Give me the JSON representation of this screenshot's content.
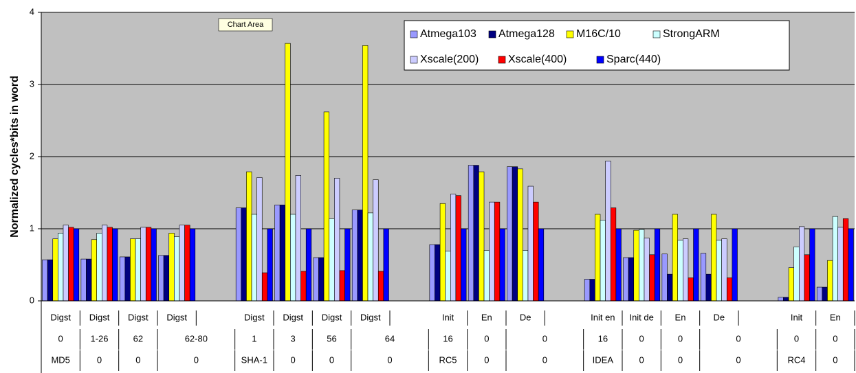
{
  "chart_data": {
    "type": "bar",
    "y_label": "Normalized cycles*bits in word",
    "tooltip": "Chart Area",
    "ylim": [
      0,
      4
    ],
    "yticks": [
      0,
      1,
      2,
      3,
      4
    ],
    "grid": true,
    "legend": "top-right",
    "categories": [
      [
        "Digst",
        "0",
        "MD5"
      ],
      [
        "Digst",
        "1-26",
        "0"
      ],
      [
        "Digst",
        "62",
        "0"
      ],
      [
        "Digst",
        "62-80",
        "0"
      ],
      [
        null,
        null,
        null
      ],
      [
        "Digst",
        "1",
        "SHA-1"
      ],
      [
        "Digst",
        "3",
        "0"
      ],
      [
        "Digst",
        "56",
        "0"
      ],
      [
        "Digst",
        "64",
        "0"
      ],
      [
        null,
        null,
        null
      ],
      [
        "Init",
        "16",
        "RC5"
      ],
      [
        "En",
        "0",
        "0"
      ],
      [
        "De",
        "0",
        "0"
      ],
      [
        null,
        null,
        null
      ],
      [
        "Init en",
        "16",
        "IDEA"
      ],
      [
        "Init de",
        "0",
        "0"
      ],
      [
        "En",
        "0",
        "0"
      ],
      [
        "De",
        "0",
        "0"
      ],
      [
        null,
        null,
        null
      ],
      [
        "Init",
        "0",
        "RC4"
      ],
      [
        "En",
        "0",
        "0"
      ]
    ],
    "series": [
      {
        "name": "Atmega103",
        "color": "#9999ff",
        "values": [
          0.57,
          0.58,
          0.61,
          0.63,
          null,
          1.29,
          1.33,
          0.6,
          1.26,
          null,
          0.78,
          1.88,
          1.86,
          null,
          0.3,
          0.6,
          0.65,
          0.66,
          null,
          0.05,
          0.19
        ]
      },
      {
        "name": "Atmega128",
        "color": "#000080",
        "values": [
          0.57,
          0.58,
          0.61,
          0.63,
          null,
          1.29,
          1.33,
          0.6,
          1.26,
          null,
          0.78,
          1.88,
          1.86,
          null,
          0.3,
          0.6,
          0.37,
          0.37,
          null,
          0.05,
          0.19
        ]
      },
      {
        "name": "M16C/10",
        "color": "#ffff00",
        "values": [
          0.86,
          0.85,
          0.86,
          0.94,
          null,
          1.79,
          3.57,
          2.62,
          3.54,
          null,
          1.35,
          1.79,
          1.83,
          null,
          1.2,
          0.98,
          1.2,
          1.2,
          null,
          0.46,
          0.56
        ]
      },
      {
        "name": "StrongARM",
        "color": "#ccffff",
        "values": [
          0.94,
          0.94,
          0.86,
          0.89,
          null,
          1.2,
          1.2,
          1.14,
          1.22,
          null,
          0.69,
          0.7,
          0.7,
          null,
          1.12,
          0.99,
          0.84,
          0.84,
          null,
          0.75,
          1.17
        ]
      },
      {
        "name": "Xscale(200)",
        "color": "#ccccff",
        "values": [
          1.05,
          1.05,
          1.02,
          1.05,
          null,
          1.71,
          1.74,
          1.7,
          1.68,
          null,
          1.48,
          1.37,
          1.59,
          null,
          1.94,
          0.87,
          0.86,
          0.86,
          null,
          1.03,
          1.02
        ]
      },
      {
        "name": "Xscale(400)",
        "color": "#ff0000",
        "values": [
          1.02,
          1.02,
          1.02,
          1.05,
          null,
          0.39,
          0.41,
          0.42,
          0.41,
          null,
          1.46,
          1.37,
          1.37,
          null,
          1.29,
          0.64,
          0.32,
          0.32,
          null,
          0.64,
          1.14
        ]
      },
      {
        "name": "Sparc(440)",
        "color": "#0000ff",
        "values": [
          1.0,
          1.0,
          1.0,
          1.0,
          null,
          1.0,
          1.0,
          1.0,
          1.0,
          null,
          1.0,
          1.0,
          1.0,
          null,
          1.0,
          1.0,
          1.0,
          1.0,
          null,
          1.0,
          1.0
        ]
      }
    ]
  }
}
